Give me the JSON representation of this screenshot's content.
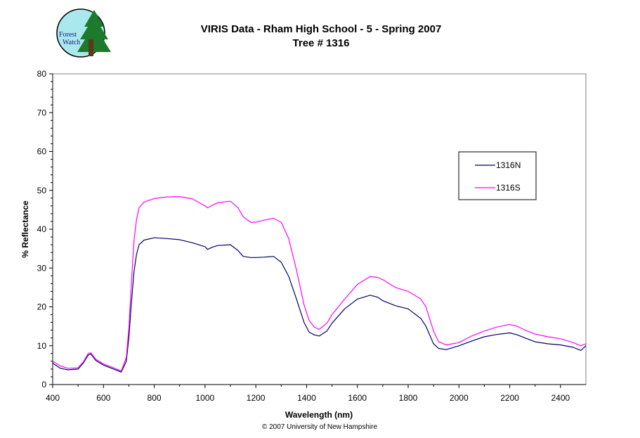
{
  "chart_data": {
    "type": "line",
    "title": "VIRIS Data - Rham High School - 5 - Spring 2007",
    "subtitle": "Tree # 1316",
    "xlabel": "Wavelength (nm)",
    "ylabel": "% Reflectance",
    "xlim": [
      400,
      2500
    ],
    "ylim": [
      0,
      80
    ],
    "xticks": [
      400,
      600,
      800,
      1000,
      1200,
      1400,
      1600,
      1800,
      2000,
      2200,
      2400
    ],
    "yticks": [
      0,
      10,
      20,
      30,
      40,
      50,
      60,
      70,
      80
    ],
    "grid": false,
    "legend_position": "right",
    "series": [
      {
        "name": "1316N",
        "color": "#000066",
        "x": [
          400,
          430,
          460,
          500,
          520,
          540,
          550,
          570,
          600,
          640,
          670,
          690,
          700,
          710,
          720,
          730,
          740,
          760,
          800,
          850,
          900,
          950,
          1000,
          1010,
          1030,
          1050,
          1100,
          1130,
          1150,
          1180,
          1200,
          1230,
          1270,
          1300,
          1330,
          1360,
          1390,
          1410,
          1430,
          1450,
          1480,
          1500,
          1550,
          1600,
          1650,
          1680,
          1700,
          1750,
          1800,
          1850,
          1870,
          1900,
          1920,
          1950,
          2000,
          2050,
          2100,
          2150,
          2200,
          2230,
          2260,
          2300,
          2350,
          2400,
          2450,
          2480,
          2500
        ],
        "values": [
          5.5,
          4.2,
          3.8,
          4.0,
          5.5,
          7.6,
          7.9,
          6.2,
          5.0,
          4.0,
          3.2,
          6.0,
          12.0,
          21.0,
          29.0,
          33.5,
          36.0,
          37.2,
          37.8,
          37.6,
          37.3,
          36.5,
          35.5,
          34.8,
          35.4,
          35.8,
          36.0,
          34.5,
          33.0,
          32.7,
          32.7,
          32.8,
          33.0,
          31.5,
          27.8,
          22.0,
          16.0,
          13.5,
          12.8,
          12.5,
          13.8,
          15.8,
          19.5,
          22.0,
          23.0,
          22.5,
          21.6,
          20.3,
          19.5,
          17.0,
          15.0,
          10.5,
          9.3,
          9.0,
          10.0,
          11.2,
          12.3,
          12.9,
          13.3,
          12.8,
          12.0,
          11.0,
          10.5,
          10.2,
          9.6,
          8.8,
          10.0
        ]
      },
      {
        "name": "1316S",
        "color": "#ff00ff",
        "x": [
          400,
          430,
          460,
          500,
          520,
          540,
          550,
          570,
          600,
          640,
          670,
          690,
          700,
          710,
          720,
          730,
          740,
          760,
          800,
          850,
          900,
          950,
          1000,
          1010,
          1030,
          1050,
          1100,
          1130,
          1150,
          1180,
          1200,
          1230,
          1270,
          1300,
          1330,
          1360,
          1390,
          1410,
          1430,
          1450,
          1480,
          1500,
          1550,
          1600,
          1650,
          1680,
          1700,
          1750,
          1800,
          1850,
          1870,
          1900,
          1920,
          1950,
          2000,
          2050,
          2100,
          2150,
          2200,
          2230,
          2260,
          2300,
          2350,
          2400,
          2450,
          2480,
          2500
        ],
        "values": [
          6.0,
          4.8,
          4.2,
          4.3,
          5.8,
          8.0,
          8.2,
          6.5,
          5.3,
          4.3,
          3.5,
          7.0,
          14.5,
          26.0,
          37.0,
          42.5,
          45.5,
          47.0,
          47.9,
          48.3,
          48.4,
          47.8,
          46.0,
          45.5,
          46.2,
          46.8,
          47.2,
          45.5,
          43.2,
          41.8,
          41.8,
          42.3,
          42.8,
          41.8,
          37.5,
          29.5,
          20.5,
          16.5,
          14.8,
          14.2,
          15.8,
          18.0,
          22.0,
          25.8,
          27.8,
          27.6,
          27.0,
          25.0,
          24.0,
          22.0,
          20.0,
          13.8,
          11.0,
          10.2,
          10.8,
          12.5,
          13.8,
          14.8,
          15.5,
          15.0,
          14.0,
          13.0,
          12.3,
          11.8,
          10.8,
          10.0,
          10.5
        ]
      }
    ]
  },
  "logo": {
    "line1": "Forest",
    "line2": "Watch"
  },
  "footer": "© 2007 University of New Hampshire"
}
